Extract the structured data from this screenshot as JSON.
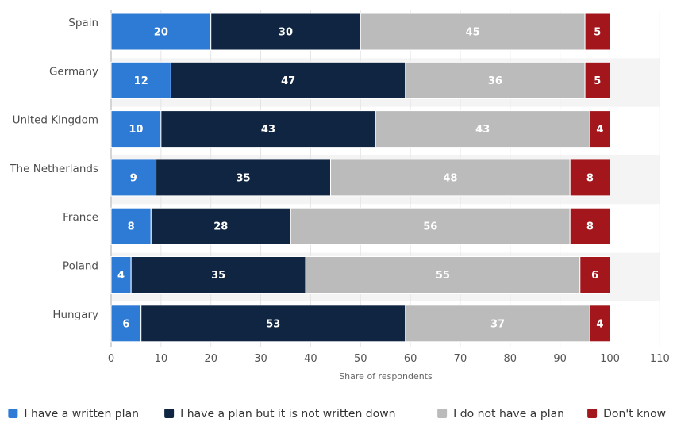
{
  "colors": {
    "written_plan": "#2E7BD6",
    "plan_not_written": "#0F2541",
    "no_plan": "#BBBBBB",
    "dont_know": "#A3161B",
    "band": "#F4F4F4",
    "grid": "#E4E4E4",
    "axis": "#C8C8C8"
  },
  "chart_data": {
    "type": "bar",
    "orientation": "horizontal",
    "stacked": true,
    "categories": [
      "Spain",
      "Germany",
      "United Kingdom",
      "The Netherlands",
      "France",
      "Poland",
      "Hungary"
    ],
    "series": [
      {
        "name": "I have a written plan",
        "color": "#2E7BD6",
        "values": [
          20,
          12,
          10,
          9,
          8,
          4,
          6
        ]
      },
      {
        "name": "I have a plan but it is not written down",
        "color": "#0F2541",
        "values": [
          30,
          47,
          43,
          35,
          28,
          35,
          53
        ]
      },
      {
        "name": "I do not have a plan",
        "color": "#BBBBBB",
        "values": [
          45,
          36,
          43,
          48,
          56,
          55,
          37
        ]
      },
      {
        "name": "Don't know",
        "color": "#A3161B",
        "values": [
          5,
          5,
          4,
          8,
          8,
          6,
          4
        ]
      }
    ],
    "xlabel": "Share of respondents",
    "ylabel": "",
    "xlim": [
      0,
      110
    ],
    "xticks": [
      0,
      10,
      20,
      30,
      40,
      50,
      60,
      70,
      80,
      90,
      100,
      110
    ],
    "grid": true,
    "legend_position": "bottom",
    "data_labels": true
  }
}
